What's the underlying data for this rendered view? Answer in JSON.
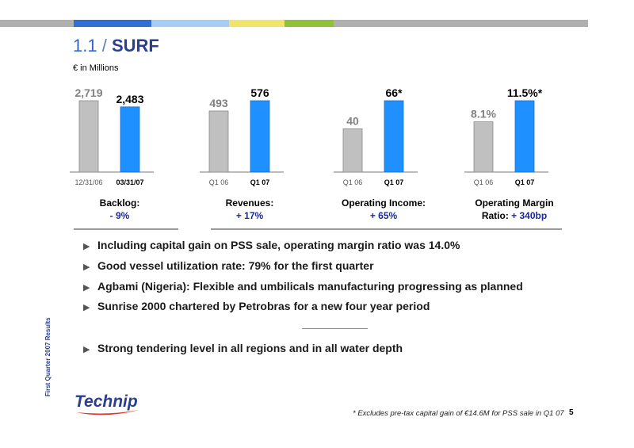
{
  "header": {
    "section_number": "1.1",
    "slash": "/",
    "title": "SURF",
    "color_strip": [
      "#b0b0b0",
      "#2f6fd6",
      "#a9cdf2",
      "#f2e36b",
      "#8fc13a",
      "#b0b0b0"
    ]
  },
  "unit_label": "€ in Millions",
  "charts": [
    {
      "id": "backlog",
      "categories": [
        "12/31/06",
        "03/31/07"
      ],
      "values": [
        2719,
        2483
      ],
      "value_labels": [
        "2,719",
        "2,483"
      ],
      "caption_label": "Backlog:",
      "caption_delta": "- 9%"
    },
    {
      "id": "revenues",
      "categories": [
        "Q1 06",
        "Q1 07"
      ],
      "values": [
        493,
        576
      ],
      "value_labels": [
        "493",
        "576"
      ],
      "caption_label": "Revenues:",
      "caption_delta": "+ 17%"
    },
    {
      "id": "operating-income",
      "categories": [
        "Q1 06",
        "Q1 07"
      ],
      "values": [
        40,
        66
      ],
      "value_labels": [
        "40",
        "66*"
      ],
      "caption_label": "Operating Income:",
      "caption_delta": "+ 65%"
    },
    {
      "id": "operating-margin",
      "categories": [
        "Q1 06",
        "Q1 07"
      ],
      "values": [
        8.1,
        11.5
      ],
      "value_labels": [
        "8.1%",
        "11.5%*"
      ],
      "caption_label": "Operating Margin",
      "caption_label2": "Ratio:",
      "caption_delta": "+ 340bp"
    }
  ],
  "chart_colors": {
    "prior": "#c0c0c0",
    "current": "#1e90ff",
    "prior_label": "#808080"
  },
  "bullets": [
    "Including capital gain on PSS sale, operating margin ratio was 14.0%",
    "Good vessel utilization rate: 79% for the first quarter",
    "Agbami (Nigeria): Flexible and umbilicals manufacturing progressing as planned",
    "Sunrise 2000 chartered by Petrobras for a new four year period",
    "Strong tendering level in all regions and in all water depth"
  ],
  "side_text": "First Quarter 2007 Results",
  "logo_text": "Technip",
  "footnote": "* Excludes pre-tax capital gain of €14.6M for PSS sale in Q1 07",
  "page_number": "5"
}
